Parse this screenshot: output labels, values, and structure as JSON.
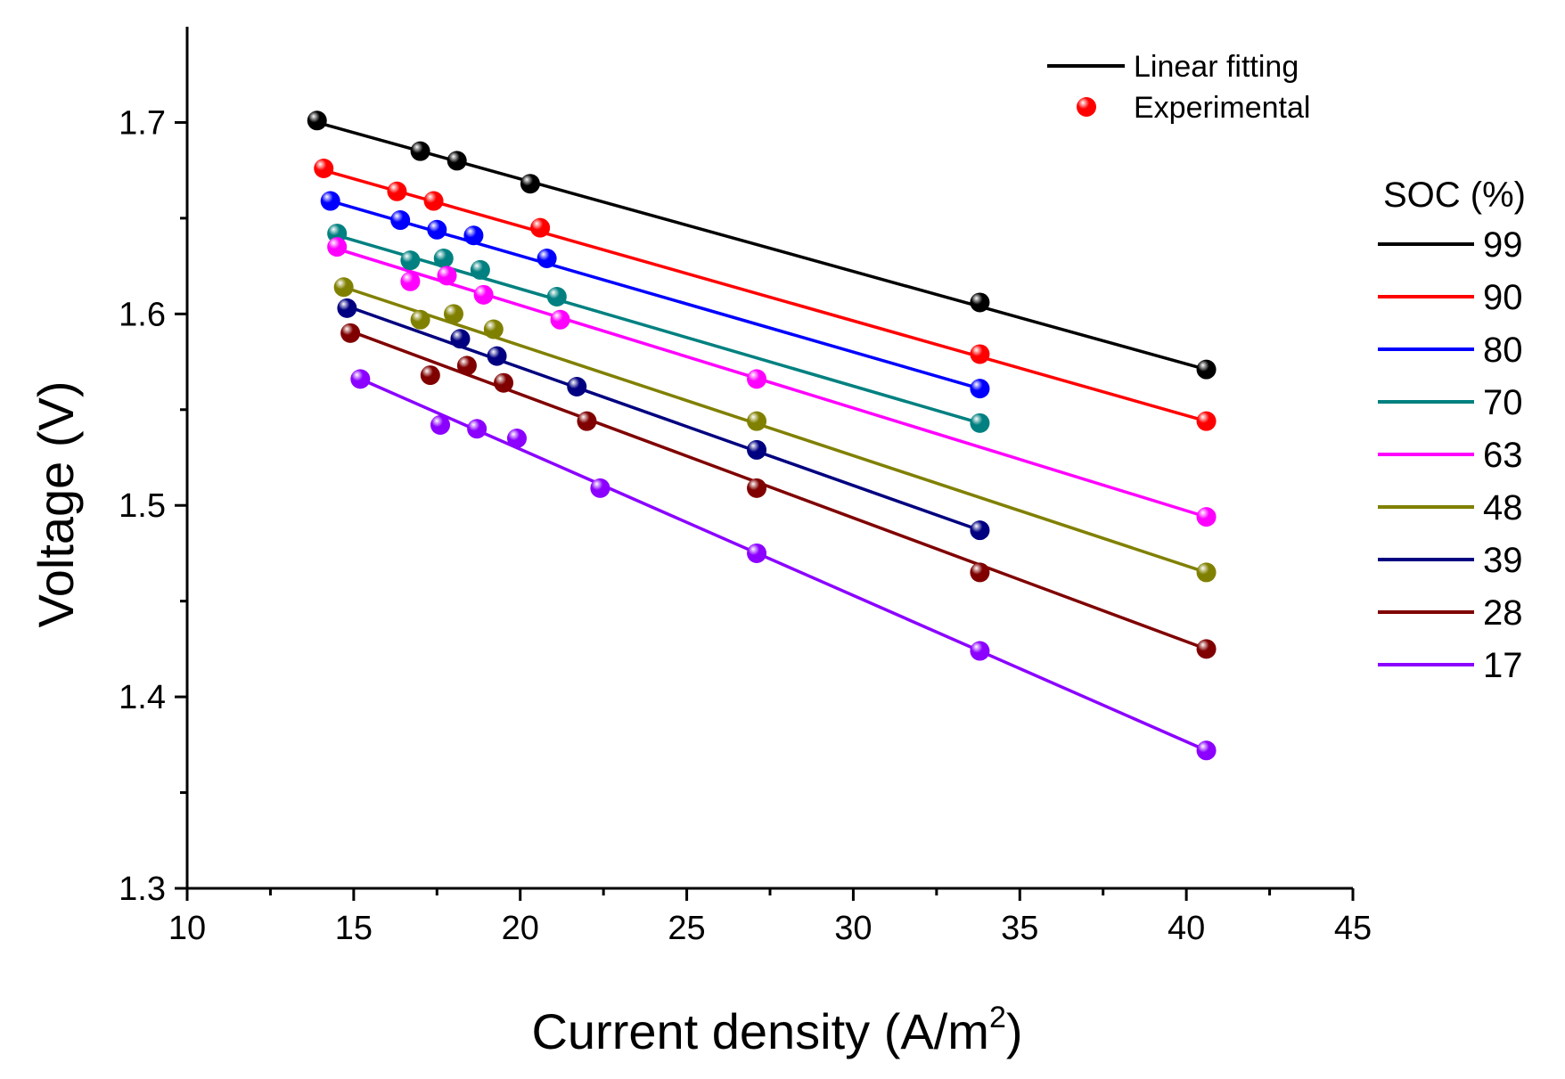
{
  "chart_data": {
    "type": "scatter",
    "title": "",
    "xlabel": "Current density (A/m",
    "xlabel_sup": "2",
    "xlabel_end": ")",
    "ylabel": "Voltage (V)",
    "xlim": [
      10,
      45
    ],
    "ylim": [
      1.3,
      1.75
    ],
    "xticks": [
      10,
      15,
      20,
      25,
      30,
      35,
      40,
      45
    ],
    "yticks": [
      1.3,
      1.4,
      1.5,
      1.6,
      1.7
    ],
    "xtick_labels": [
      "10",
      "15",
      "20",
      "25",
      "30",
      "35",
      "40",
      "45"
    ],
    "ytick_labels": [
      "1.3",
      "1.4",
      "1.5",
      "1.6",
      "1.7"
    ],
    "legend": {
      "position": "top-right",
      "line_label": "Linear fitting",
      "marker_label": "Experimental",
      "line_color": "#000000",
      "marker_color": "#ff0000"
    },
    "soc_legend": {
      "title": "SOC (%)",
      "position": "right"
    },
    "series": [
      {
        "name": "99",
        "color": "#000000",
        "fit": [
          [
            13.9,
            1.7
          ],
          [
            40.6,
            1.571
          ]
        ],
        "x": [
          13.9,
          17.0,
          18.1,
          20.3,
          33.8,
          40.6
        ],
        "y": [
          1.701,
          1.685,
          1.68,
          1.668,
          1.606,
          1.571
        ]
      },
      {
        "name": "90",
        "color": "#ff0000",
        "fit": [
          [
            14.1,
            1.675
          ],
          [
            40.6,
            1.544
          ]
        ],
        "x": [
          14.1,
          16.3,
          17.4,
          20.6,
          33.8,
          40.6
        ],
        "y": [
          1.676,
          1.664,
          1.659,
          1.645,
          1.579,
          1.544
        ]
      },
      {
        "name": "80",
        "color": "#0000ff",
        "fit": [
          [
            14.3,
            1.659
          ],
          [
            33.8,
            1.561
          ]
        ],
        "x": [
          14.3,
          16.4,
          17.5,
          18.6,
          20.8,
          33.8
        ],
        "y": [
          1.659,
          1.649,
          1.644,
          1.641,
          1.629,
          1.561
        ]
      },
      {
        "name": "70",
        "color": "#008080",
        "fit": [
          [
            14.5,
            1.641
          ],
          [
            33.8,
            1.543
          ]
        ],
        "x": [
          14.5,
          16.7,
          17.7,
          18.8,
          21.1,
          33.8
        ],
        "y": [
          1.642,
          1.628,
          1.629,
          1.623,
          1.609,
          1.543
        ]
      },
      {
        "name": "63",
        "color": "#ff00ff",
        "fit": [
          [
            14.5,
            1.634
          ],
          [
            40.6,
            1.494
          ]
        ],
        "x": [
          14.5,
          16.7,
          17.8,
          18.9,
          21.2,
          27.1,
          40.6
        ],
        "y": [
          1.635,
          1.617,
          1.62,
          1.61,
          1.597,
          1.566,
          1.494
        ]
      },
      {
        "name": "48",
        "color": "#808000",
        "fit": [
          [
            14.7,
            1.614
          ],
          [
            40.6,
            1.465
          ]
        ],
        "x": [
          14.7,
          17.0,
          18.0,
          19.2,
          27.1,
          40.6
        ],
        "y": [
          1.614,
          1.597,
          1.6,
          1.592,
          1.544,
          1.465
        ]
      },
      {
        "name": "39",
        "color": "#000080",
        "fit": [
          [
            14.8,
            1.604
          ],
          [
            33.8,
            1.487
          ]
        ],
        "x": [
          14.8,
          18.2,
          19.3,
          21.7,
          27.1,
          33.8
        ],
        "y": [
          1.603,
          1.587,
          1.578,
          1.562,
          1.529,
          1.487
        ]
      },
      {
        "name": "28",
        "color": "#800000",
        "fit": [
          [
            14.9,
            1.591
          ],
          [
            40.6,
            1.425
          ]
        ],
        "x": [
          14.9,
          17.3,
          18.4,
          19.5,
          22.0,
          27.1,
          33.8,
          40.6
        ],
        "y": [
          1.59,
          1.568,
          1.573,
          1.564,
          1.544,
          1.509,
          1.465,
          1.425
        ]
      },
      {
        "name": "17",
        "color": "#8b00ff",
        "fit": [
          [
            15.2,
            1.566
          ],
          [
            40.6,
            1.372
          ]
        ],
        "x": [
          15.2,
          17.6,
          18.7,
          19.9,
          22.4,
          27.1,
          33.8,
          40.6
        ],
        "y": [
          1.566,
          1.542,
          1.54,
          1.535,
          1.509,
          1.475,
          1.424,
          1.372
        ]
      }
    ]
  }
}
